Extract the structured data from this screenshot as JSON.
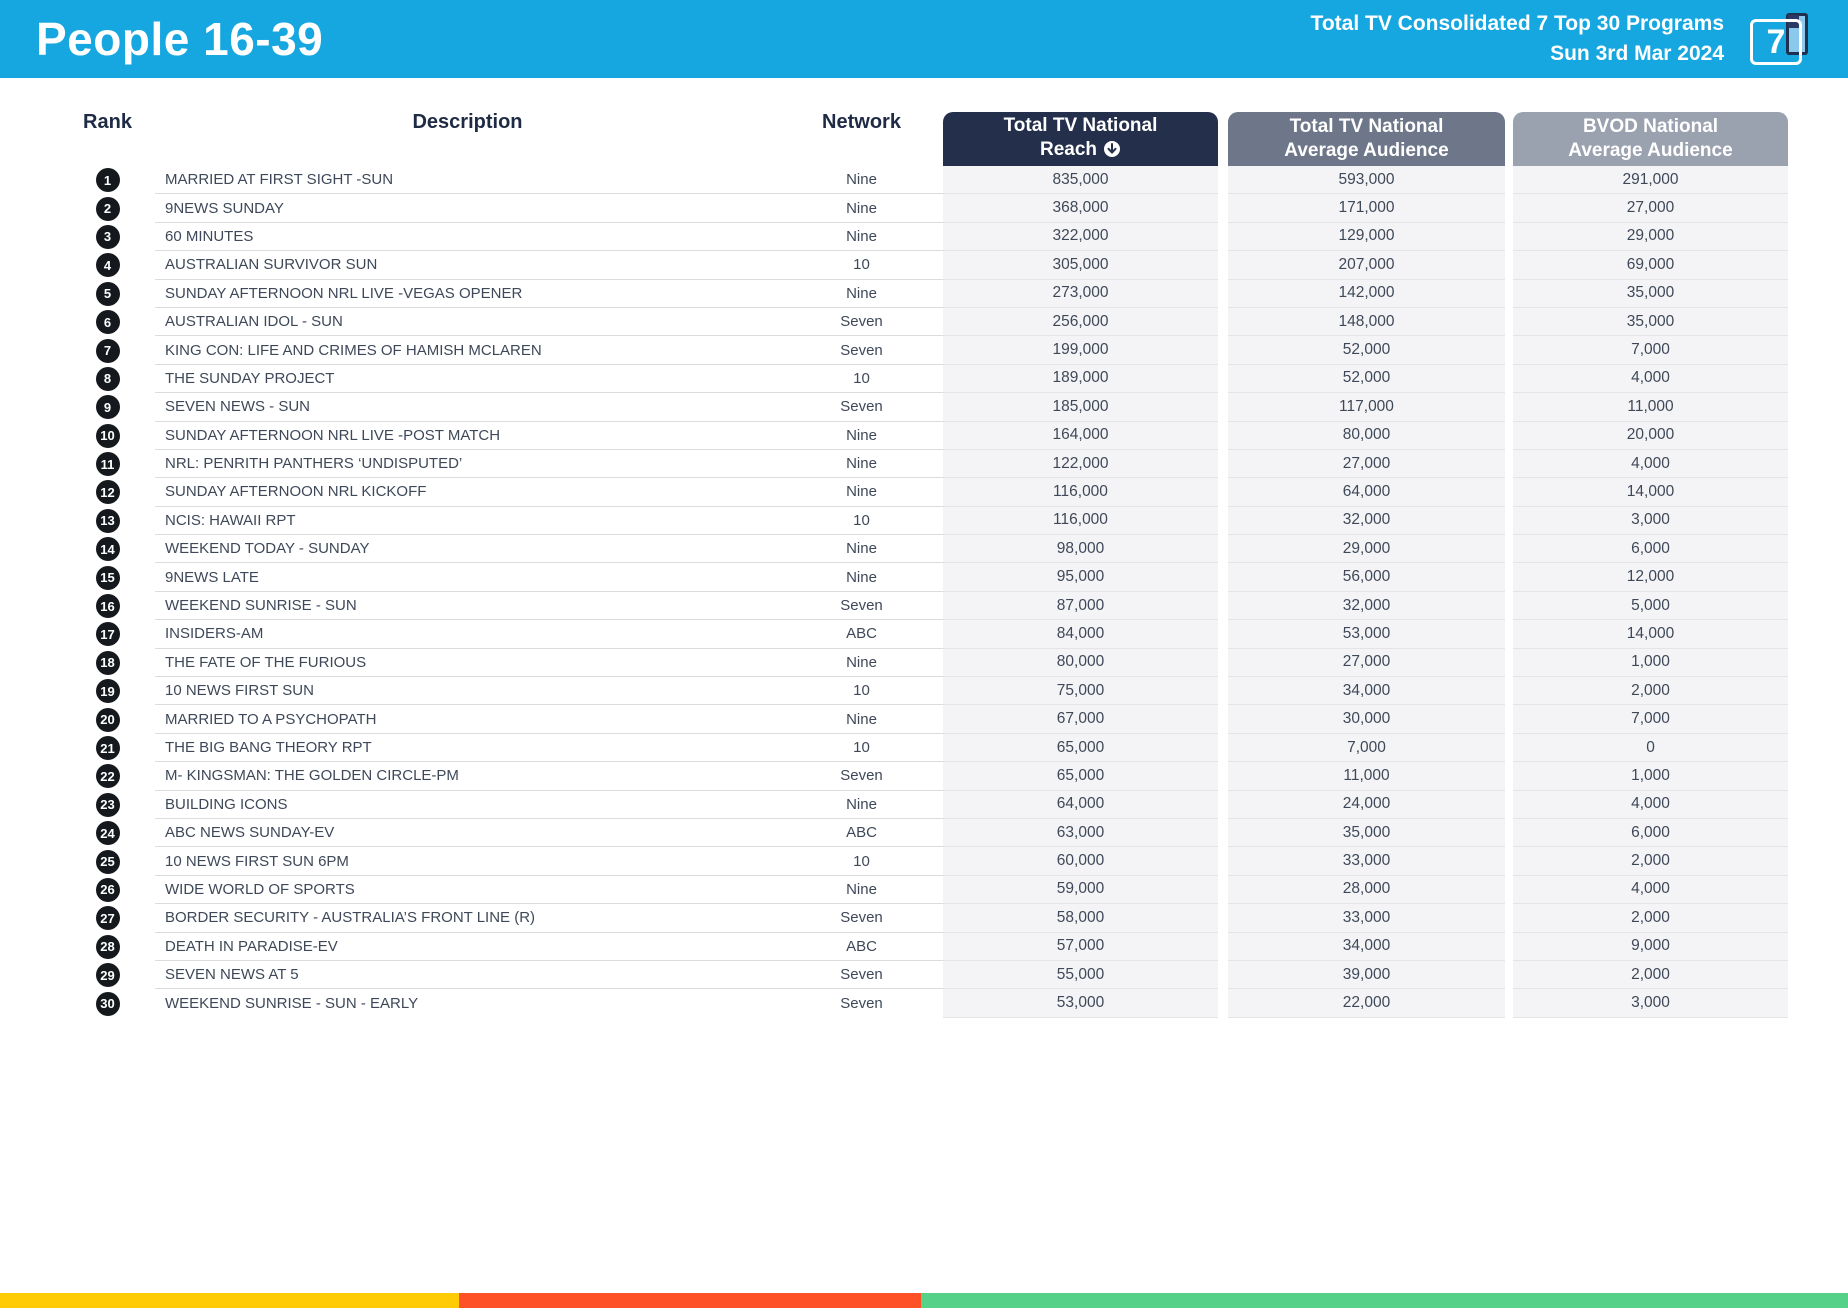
{
  "header": {
    "title": "People 16-39",
    "subtitle_line1": "Total TV Consolidated 7 Top 30 Programs",
    "subtitle_line2": "Sun 3rd Mar 2024",
    "logo_number": "7",
    "banner_color": "#17A7E0"
  },
  "table": {
    "columns": {
      "rank": "Rank",
      "description": "Description",
      "network": "Network",
      "reach_line1": "Total TV National",
      "reach_line2": "Reach",
      "avg": "Total TV National Average Audience",
      "bvod": "BVOD National Average Audience"
    },
    "sort_icon": "arrow-down-circle",
    "header_colors": {
      "reach": "#242F4B",
      "avg": "#6D7789",
      "bvod": "#9BA2AF"
    },
    "rows": [
      {
        "rank": "1",
        "description": "MARRIED AT FIRST SIGHT -SUN",
        "network": "Nine",
        "reach": "835,000",
        "avg": "593,000",
        "bvod": "291,000"
      },
      {
        "rank": "2",
        "description": "9NEWS SUNDAY",
        "network": "Nine",
        "reach": "368,000",
        "avg": "171,000",
        "bvod": "27,000"
      },
      {
        "rank": "3",
        "description": "60 MINUTES",
        "network": "Nine",
        "reach": "322,000",
        "avg": "129,000",
        "bvod": "29,000"
      },
      {
        "rank": "4",
        "description": "AUSTRALIAN SURVIVOR SUN",
        "network": "10",
        "reach": "305,000",
        "avg": "207,000",
        "bvod": "69,000"
      },
      {
        "rank": "5",
        "description": "SUNDAY AFTERNOON NRL LIVE -VEGAS OPENER",
        "network": "Nine",
        "reach": "273,000",
        "avg": "142,000",
        "bvod": "35,000"
      },
      {
        "rank": "6",
        "description": "AUSTRALIAN IDOL - SUN",
        "network": "Seven",
        "reach": "256,000",
        "avg": "148,000",
        "bvod": "35,000"
      },
      {
        "rank": "7",
        "description": "KING CON: LIFE AND CRIMES OF HAMISH MCLAREN",
        "network": "Seven",
        "reach": "199,000",
        "avg": "52,000",
        "bvod": "7,000"
      },
      {
        "rank": "8",
        "description": "THE SUNDAY PROJECT",
        "network": "10",
        "reach": "189,000",
        "avg": "52,000",
        "bvod": "4,000"
      },
      {
        "rank": "9",
        "description": "SEVEN NEWS - SUN",
        "network": "Seven",
        "reach": "185,000",
        "avg": "117,000",
        "bvod": "11,000"
      },
      {
        "rank": "10",
        "description": "SUNDAY AFTERNOON NRL LIVE -POST MATCH",
        "network": "Nine",
        "reach": "164,000",
        "avg": "80,000",
        "bvod": "20,000"
      },
      {
        "rank": "11",
        "description": "NRL: PENRITH PANTHERS ‘UNDISPUTED’",
        "network": "Nine",
        "reach": "122,000",
        "avg": "27,000",
        "bvod": "4,000"
      },
      {
        "rank": "12",
        "description": "SUNDAY AFTERNOON NRL KICKOFF",
        "network": "Nine",
        "reach": "116,000",
        "avg": "64,000",
        "bvod": "14,000"
      },
      {
        "rank": "13",
        "description": "NCIS: HAWAII RPT",
        "network": "10",
        "reach": "116,000",
        "avg": "32,000",
        "bvod": "3,000"
      },
      {
        "rank": "14",
        "description": "WEEKEND TODAY - SUNDAY",
        "network": "Nine",
        "reach": "98,000",
        "avg": "29,000",
        "bvod": "6,000"
      },
      {
        "rank": "15",
        "description": "9NEWS LATE",
        "network": "Nine",
        "reach": "95,000",
        "avg": "56,000",
        "bvod": "12,000"
      },
      {
        "rank": "16",
        "description": "WEEKEND SUNRISE - SUN",
        "network": "Seven",
        "reach": "87,000",
        "avg": "32,000",
        "bvod": "5,000"
      },
      {
        "rank": "17",
        "description": "INSIDERS-AM",
        "network": "ABC",
        "reach": "84,000",
        "avg": "53,000",
        "bvod": "14,000"
      },
      {
        "rank": "18",
        "description": "THE FATE OF THE FURIOUS",
        "network": "Nine",
        "reach": "80,000",
        "avg": "27,000",
        "bvod": "1,000"
      },
      {
        "rank": "19",
        "description": "10 NEWS FIRST SUN",
        "network": "10",
        "reach": "75,000",
        "avg": "34,000",
        "bvod": "2,000"
      },
      {
        "rank": "20",
        "description": "MARRIED TO A PSYCHOPATH",
        "network": "Nine",
        "reach": "67,000",
        "avg": "30,000",
        "bvod": "7,000"
      },
      {
        "rank": "21",
        "description": "THE BIG BANG THEORY RPT",
        "network": "10",
        "reach": "65,000",
        "avg": "7,000",
        "bvod": "0"
      },
      {
        "rank": "22",
        "description": "M- KINGSMAN: THE GOLDEN CIRCLE-PM",
        "network": "Seven",
        "reach": "65,000",
        "avg": "11,000",
        "bvod": "1,000"
      },
      {
        "rank": "23",
        "description": "BUILDING ICONS",
        "network": "Nine",
        "reach": "64,000",
        "avg": "24,000",
        "bvod": "4,000"
      },
      {
        "rank": "24",
        "description": "ABC NEWS SUNDAY-EV",
        "network": "ABC",
        "reach": "63,000",
        "avg": "35,000",
        "bvod": "6,000"
      },
      {
        "rank": "25",
        "description": "10 NEWS FIRST SUN 6PM",
        "network": "10",
        "reach": "60,000",
        "avg": "33,000",
        "bvod": "2,000"
      },
      {
        "rank": "26",
        "description": "WIDE WORLD OF SPORTS",
        "network": "Nine",
        "reach": "59,000",
        "avg": "28,000",
        "bvod": "4,000"
      },
      {
        "rank": "27",
        "description": "BORDER SECURITY - AUSTRALIA’S FRONT LINE (R)",
        "network": "Seven",
        "reach": "58,000",
        "avg": "33,000",
        "bvod": "2,000"
      },
      {
        "rank": "28",
        "description": "DEATH IN PARADISE-EV",
        "network": "ABC",
        "reach": "57,000",
        "avg": "34,000",
        "bvod": "9,000"
      },
      {
        "rank": "29",
        "description": "SEVEN NEWS AT 5",
        "network": "Seven",
        "reach": "55,000",
        "avg": "39,000",
        "bvod": "2,000"
      },
      {
        "rank": "30",
        "description": "WEEKEND SUNRISE - SUN - EARLY",
        "network": "Seven",
        "reach": "53,000",
        "avg": "22,000",
        "bvod": "3,000"
      }
    ]
  },
  "footer_bar": {
    "segments": [
      {
        "name": "yellow",
        "color": "#FECB05",
        "width_pct": 24.84
      },
      {
        "name": "red",
        "color": "#FF5126",
        "width_pct": 25.0
      },
      {
        "name": "green",
        "color": "#55D287",
        "width_pct": 50.16
      }
    ]
  }
}
